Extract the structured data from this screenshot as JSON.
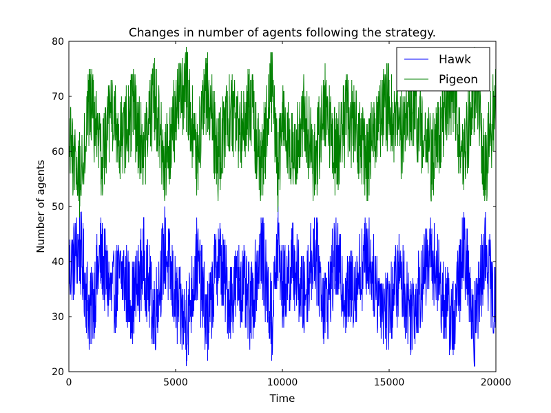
{
  "chart_data": {
    "type": "line",
    "title": "Changes in number of agents following the strategy.",
    "xlabel": "Time",
    "ylabel": "Number of agents",
    "xlim": [
      0,
      20000
    ],
    "ylim": [
      20,
      80
    ],
    "xticks": [
      "0",
      "5000",
      "10000",
      "15000",
      "20000"
    ],
    "yticks": [
      "20",
      "30",
      "40",
      "50",
      "60",
      "70",
      "80"
    ],
    "grid": false,
    "legend_position": "top-right",
    "series": [
      {
        "name": "Hawk",
        "color": "#0000ff",
        "mean": 36.5,
        "min": 21,
        "max": 50,
        "x": [
          0,
          500,
          1000,
          1500,
          2000,
          2500,
          3000,
          3500,
          4000,
          4500,
          5000,
          5500,
          6000,
          6500,
          7000,
          7500,
          8000,
          8500,
          9000,
          9500,
          9800,
          10000,
          10500,
          11000,
          11500,
          12000,
          12500,
          13000,
          13500,
          14000,
          14500,
          15000,
          15500,
          16000,
          16500,
          17000,
          17500,
          18000,
          18500,
          19000,
          19500,
          20000
        ],
        "values": [
          40,
          48,
          25,
          45,
          31,
          39,
          29,
          43,
          25,
          47,
          30,
          21,
          44,
          22,
          46,
          30,
          37,
          27,
          48,
          22,
          50,
          33,
          43,
          30,
          48,
          27,
          44,
          31,
          37,
          46,
          32,
          27,
          39,
          26,
          36,
          46,
          31,
          23,
          47,
          21,
          48,
          25
        ]
      },
      {
        "name": "Pigeon",
        "color": "#008000",
        "mean": 63.5,
        "min": 48,
        "max": 79,
        "x": [
          0,
          500,
          1000,
          1500,
          2000,
          2500,
          3000,
          3500,
          4000,
          4500,
          5000,
          5500,
          6000,
          6500,
          7000,
          7500,
          8000,
          8500,
          9000,
          9500,
          9800,
          10000,
          10500,
          11000,
          11500,
          12000,
          12500,
          13000,
          13500,
          14000,
          14500,
          15000,
          15500,
          16000,
          16500,
          17000,
          17500,
          18000,
          18500,
          19000,
          19500,
          20000
        ],
        "values": [
          60,
          48,
          75,
          54,
          69,
          61,
          71,
          57,
          75,
          53,
          70,
          79,
          56,
          78,
          54,
          70,
          63,
          73,
          52,
          78,
          50,
          67,
          57,
          70,
          52,
          73,
          56,
          69,
          63,
          54,
          68,
          73,
          61,
          74,
          64,
          54,
          69,
          77,
          53,
          79,
          52,
          75
        ]
      }
    ]
  }
}
